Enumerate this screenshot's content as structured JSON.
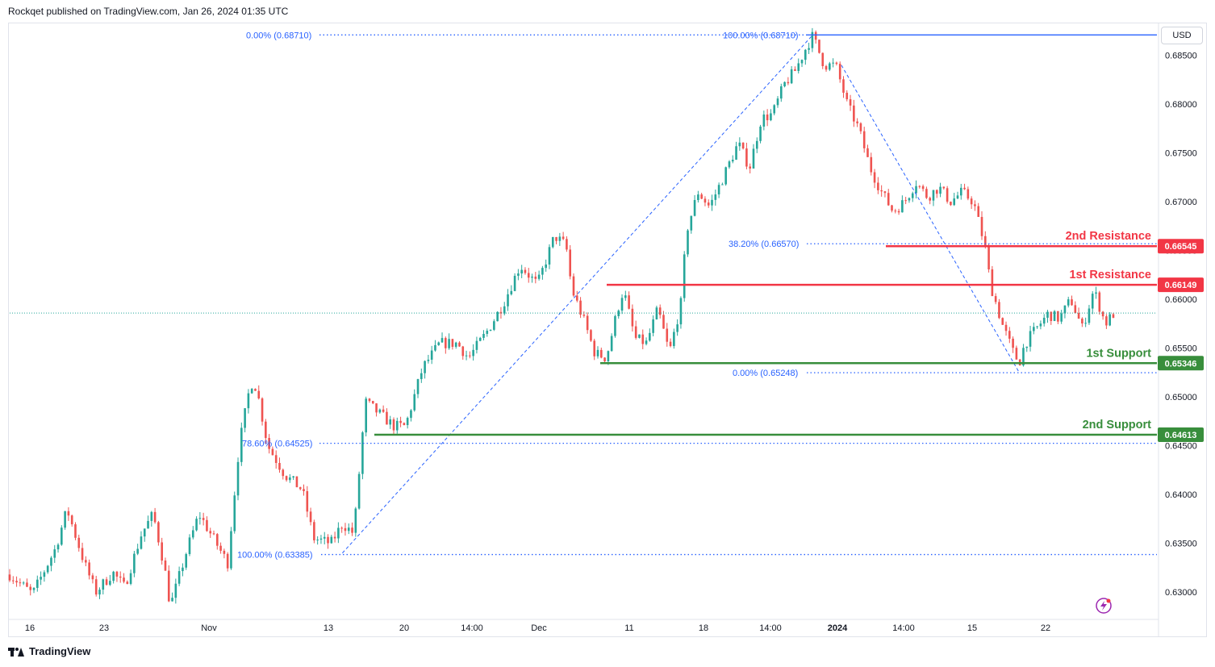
{
  "header": {
    "published": "Rockqet published on TradingView.com, Jan 26, 2024 01:35 UTC"
  },
  "footer": {
    "brand": "TradingView",
    "logo_icon": "tradingview-logo-icon"
  },
  "currency": "USD",
  "colors": {
    "up": "#26a69a",
    "down": "#ef5350",
    "resistance": "#f23645",
    "support": "#388e3c",
    "fib": "#2962ff",
    "axis_text": "#131722",
    "grid": "#e0e3eb"
  },
  "chart_data": {
    "type": "candlestick",
    "symbol_quote": "USD",
    "y_ticks": [
      "0.68500",
      "0.68000",
      "0.67500",
      "0.67000",
      "0.66500",
      "0.66000",
      "0.65500",
      "0.65000",
      "0.64500",
      "0.64000",
      "0.63500",
      "0.63000"
    ],
    "x_ticks": [
      {
        "label": "16",
        "bold": false
      },
      {
        "label": "23",
        "bold": false
      },
      {
        "label": "Nov",
        "bold": false
      },
      {
        "label": "13",
        "bold": false
      },
      {
        "label": "20",
        "bold": false
      },
      {
        "label": "14:00",
        "bold": false
      },
      {
        "label": "Dec",
        "bold": false
      },
      {
        "label": "11",
        "bold": false
      },
      {
        "label": "18",
        "bold": false
      },
      {
        "label": "14:00",
        "bold": false
      },
      {
        "label": "2024",
        "bold": true
      },
      {
        "label": "14:00",
        "bold": false
      },
      {
        "label": "15",
        "bold": false
      },
      {
        "label": "22",
        "bold": false
      }
    ],
    "ylim": [
      0.6272,
      0.6882
    ],
    "levels": [
      {
        "label": "2nd Resistance",
        "value": 0.66545,
        "badge": "0.66545",
        "kind": "resistance"
      },
      {
        "label": "1st Resistance",
        "value": 0.66149,
        "badge": "0.66149",
        "kind": "resistance"
      },
      {
        "label": "1st Support",
        "value": 0.65346,
        "badge": "0.65346",
        "kind": "support"
      },
      {
        "label": "2nd Support",
        "value": 0.64613,
        "badge": "0.64613",
        "kind": "support"
      }
    ],
    "fib_labels": [
      {
        "text": "0.00% (0.68710)",
        "value": 0.6871
      },
      {
        "text": "100.00% (0.68710)",
        "value": 0.6871
      },
      {
        "text": "78.60% (0.64525)",
        "value": 0.64525
      },
      {
        "text": "100.00% (0.63385)",
        "value": 0.63385
      },
      {
        "text": "38.20% (0.66570)",
        "value": 0.6657
      },
      {
        "text": "0.00% (0.65248)",
        "value": 0.65248
      }
    ],
    "last_price": 0.6586,
    "path": [
      [
        0,
        0.6318
      ],
      [
        0.02,
        0.6298
      ],
      [
        0.04,
        0.6345
      ],
      [
        0.05,
        0.6385
      ],
      [
        0.065,
        0.633
      ],
      [
        0.075,
        0.63
      ],
      [
        0.09,
        0.632
      ],
      [
        0.1,
        0.6305
      ],
      [
        0.115,
        0.636
      ],
      [
        0.125,
        0.638
      ],
      [
        0.135,
        0.6325
      ],
      [
        0.14,
        0.6285
      ],
      [
        0.155,
        0.6345
      ],
      [
        0.165,
        0.638
      ],
      [
        0.18,
        0.635
      ],
      [
        0.19,
        0.633
      ],
      [
        0.2,
        0.645
      ],
      [
        0.21,
        0.6515
      ],
      [
        0.215,
        0.651
      ],
      [
        0.225,
        0.645
      ],
      [
        0.24,
        0.642
      ],
      [
        0.255,
        0.6405
      ],
      [
        0.265,
        0.6355
      ],
      [
        0.28,
        0.635
      ],
      [
        0.29,
        0.637
      ],
      [
        0.3,
        0.636
      ],
      [
        0.31,
        0.6495
      ],
      [
        0.325,
        0.648
      ],
      [
        0.335,
        0.647
      ],
      [
        0.345,
        0.647
      ],
      [
        0.36,
        0.653
      ],
      [
        0.375,
        0.6555
      ],
      [
        0.39,
        0.6555
      ],
      [
        0.4,
        0.654
      ],
      [
        0.415,
        0.6565
      ],
      [
        0.43,
        0.6595
      ],
      [
        0.445,
        0.6635
      ],
      [
        0.46,
        0.6615
      ],
      [
        0.475,
        0.6665
      ],
      [
        0.485,
        0.6655
      ],
      [
        0.49,
        0.661
      ],
      [
        0.5,
        0.658
      ],
      [
        0.51,
        0.6545
      ],
      [
        0.52,
        0.654
      ],
      [
        0.53,
        0.659
      ],
      [
        0.535,
        0.661
      ],
      [
        0.545,
        0.656
      ],
      [
        0.555,
        0.6555
      ],
      [
        0.565,
        0.659
      ],
      [
        0.575,
        0.6545
      ],
      [
        0.585,
        0.6595
      ],
      [
        0.59,
        0.667
      ],
      [
        0.6,
        0.671
      ],
      [
        0.61,
        0.6695
      ],
      [
        0.62,
        0.672
      ],
      [
        0.635,
        0.676
      ],
      [
        0.645,
        0.6735
      ],
      [
        0.655,
        0.6785
      ],
      [
        0.665,
        0.679
      ],
      [
        0.675,
        0.682
      ],
      [
        0.685,
        0.6835
      ],
      [
        0.695,
        0.686
      ],
      [
        0.7,
        0.687
      ],
      [
        0.71,
        0.684
      ],
      [
        0.72,
        0.684
      ],
      [
        0.73,
        0.68
      ],
      [
        0.74,
        0.6775
      ],
      [
        0.75,
        0.6735
      ],
      [
        0.76,
        0.671
      ],
      [
        0.77,
        0.669
      ],
      [
        0.78,
        0.67
      ],
      [
        0.79,
        0.672
      ],
      [
        0.8,
        0.6705
      ],
      [
        0.81,
        0.6715
      ],
      [
        0.82,
        0.67
      ],
      [
        0.83,
        0.671
      ],
      [
        0.84,
        0.67
      ],
      [
        0.85,
        0.6655
      ],
      [
        0.855,
        0.6615
      ],
      [
        0.865,
        0.6575
      ],
      [
        0.875,
        0.6545
      ],
      [
        0.88,
        0.6535
      ],
      [
        0.885,
        0.6555
      ],
      [
        0.895,
        0.657
      ],
      [
        0.905,
        0.6585
      ],
      [
        0.915,
        0.658
      ],
      [
        0.925,
        0.66
      ],
      [
        0.935,
        0.657
      ],
      [
        0.945,
        0.661
      ],
      [
        0.955,
        0.6575
      ],
      [
        0.962,
        0.6585
      ]
    ],
    "annotations": [
      {
        "type": "dashed-diagonal",
        "from_fraction": 0.29,
        "from_value": 0.634,
        "to_fraction": 0.7,
        "to_value": 0.6871
      },
      {
        "type": "dashed-diagonal",
        "from_fraction": 0.725,
        "from_value": 0.684,
        "to_fraction": 0.88,
        "to_value": 0.6525
      }
    ]
  }
}
